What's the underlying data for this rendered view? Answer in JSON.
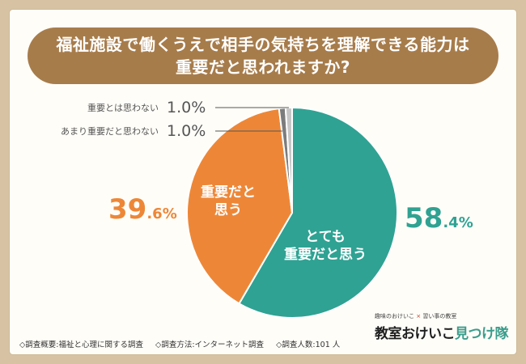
{
  "title": {
    "line1": "福祉施設で働くうえで相手の気持ちを理解できる能力は",
    "line2": "重要だと思われますか?"
  },
  "chart_data": {
    "type": "pie",
    "slices": [
      {
        "label": "とても\n重要だと思う",
        "value": 58.4,
        "display_int": "58",
        "display_dec": ".4%",
        "color": "#2fa293"
      },
      {
        "label": "重要だと\n思う",
        "value": 39.6,
        "display_int": "39",
        "display_dec": ".6%",
        "color": "#ed8737"
      },
      {
        "label": "あまり重要だと思わない",
        "value": 1.0,
        "display": "1.0%",
        "color": "#7c7c7c"
      },
      {
        "label": "重要とは思わない",
        "value": 1.0,
        "display": "1.0%",
        "color": "#c6c6c6"
      }
    ]
  },
  "footer": {
    "item1": "◇調査概要:福祉と心理に関する調査",
    "item2": "◇調査方法:インターネット調査",
    "item3": "◇調査人数:101 人"
  },
  "logo": {
    "small_left": "趣味のおけいこ",
    "small_sep": "×",
    "small_right": "習い事の教室",
    "big_main": "教室おけいこ",
    "big_accent": "見つけ隊"
  },
  "colors": {
    "background": "#d7c3a3",
    "title_bar": "#a77c4b",
    "teal": "#2fa293",
    "orange": "#ed8737"
  }
}
